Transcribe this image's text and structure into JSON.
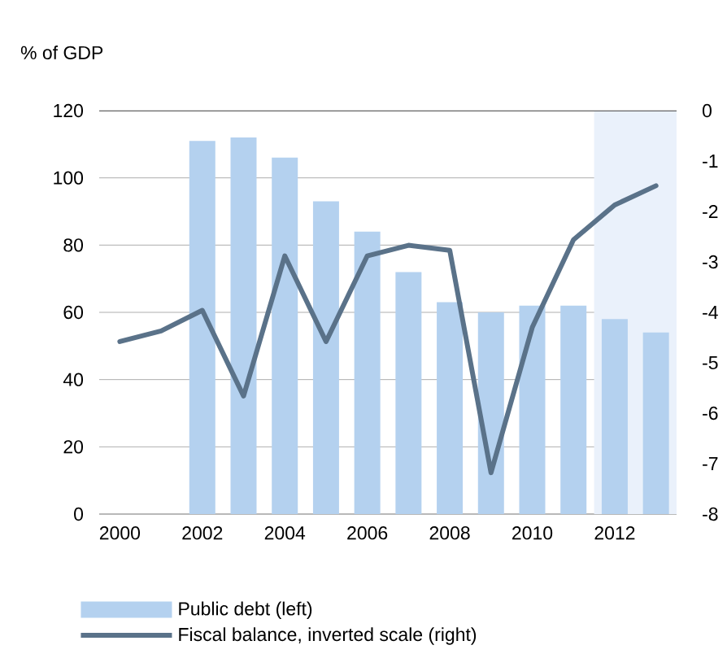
{
  "chart_data": {
    "type": "bar",
    "ylabel": "% of GDP",
    "x": [
      2000,
      2001,
      2002,
      2003,
      2004,
      2005,
      2006,
      2007,
      2008,
      2009,
      2010,
      2011,
      2012,
      2013
    ],
    "xlim": [
      1999.5,
      2013.5
    ],
    "xticks": [
      2000,
      2002,
      2004,
      2006,
      2008,
      2010,
      2012
    ],
    "ylim": [
      0,
      120
    ],
    "yticks": [
      0,
      20,
      40,
      60,
      80,
      100,
      120
    ],
    "y2lim": [
      -8,
      0
    ],
    "y2ticks": [
      -8,
      -7,
      -6,
      -5,
      -4,
      -3,
      -2,
      -1,
      0
    ],
    "grid": "y",
    "legend": "bottom",
    "bands": [
      {
        "axis": "x",
        "from": 2011.5,
        "to": 2013.5,
        "color": "#eaf1fb"
      }
    ],
    "series": [
      {
        "name": "Public debt (left)",
        "color": "#b4d1ef",
        "values": [
          null,
          null,
          111,
          112,
          106,
          93,
          84,
          72,
          63,
          60,
          62,
          62,
          58,
          54
        ]
      },
      {
        "name": "Fiscal balance, inverted scale (right)",
        "type": "line",
        "axis": "y2",
        "color": "#5a7289",
        "values": [
          -4.58,
          -4.37,
          -3.96,
          -5.66,
          -2.88,
          -4.58,
          -2.88,
          -2.67,
          -2.77,
          -7.18,
          -4.3,
          -2.56,
          -1.87,
          -1.49
        ]
      }
    ]
  }
}
